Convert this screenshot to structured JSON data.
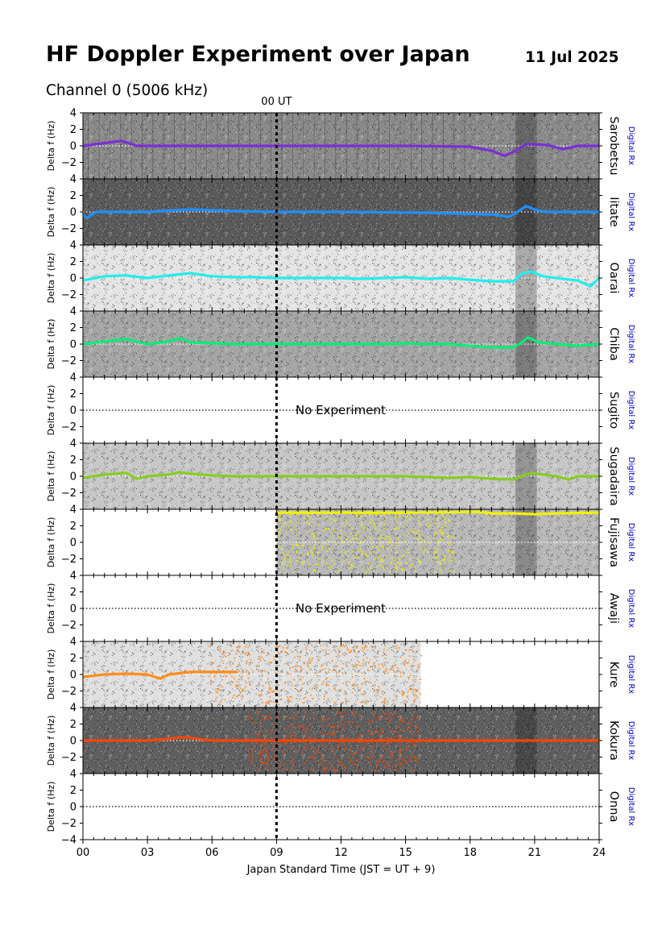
{
  "header": {
    "title": "HF Doppler Experiment over Japan",
    "date": "11 Jul 2025",
    "channel": "Channel 0 (5006 kHz)"
  },
  "chart_data": {
    "type": "line",
    "title": "HF Doppler Experiment over Japan",
    "subtitle": "Channel 0 (5006 kHz)",
    "xlabel": "Japan Standard Time (JST = UT + 9)",
    "ylabel": "Delta f (Hz)",
    "xlim": [
      0,
      24
    ],
    "ylim": [
      -4,
      4
    ],
    "xticks": [
      "00",
      "03",
      "06",
      "09",
      "12",
      "15",
      "18",
      "21",
      "24"
    ],
    "yticks": [
      "4",
      "2",
      "0",
      "−2",
      "−4"
    ],
    "marker": {
      "label": "00 UT",
      "x": 9
    },
    "receiver_label": "Digital Rx",
    "receiver_color": "#0000cc",
    "no_experiment_text": "No Experiment",
    "stations": [
      {
        "name": "Sarobetsu",
        "color": "#7b2fd6",
        "background": "#8a8a8a",
        "data_range": [
          0,
          24
        ],
        "trace_range": [
          0,
          24
        ],
        "trace": [
          [
            0,
            0
          ],
          [
            1.8,
            0.6
          ],
          [
            2.5,
            0
          ],
          [
            6,
            0
          ],
          [
            9,
            0
          ],
          [
            15,
            0
          ],
          [
            18,
            -0.1
          ],
          [
            19,
            -0.6
          ],
          [
            19.6,
            -1.2
          ],
          [
            20.2,
            -0.5
          ],
          [
            20.6,
            0.2
          ],
          [
            21.6,
            0.1
          ],
          [
            22.3,
            -0.4
          ],
          [
            23,
            0
          ],
          [
            24,
            0
          ]
        ]
      },
      {
        "name": "Iitate",
        "color": "#1e90ff",
        "background": "#5a5a5a",
        "data_range": [
          0,
          24
        ],
        "trace_range": [
          0,
          24
        ],
        "trace": [
          [
            0,
            -0.4
          ],
          [
            0.2,
            -0.7
          ],
          [
            0.6,
            0
          ],
          [
            3,
            0
          ],
          [
            5,
            0.3
          ],
          [
            7,
            0.1
          ],
          [
            9,
            0
          ],
          [
            12,
            0
          ],
          [
            16,
            -0.1
          ],
          [
            17.5,
            -0.2
          ],
          [
            19,
            -0.3
          ],
          [
            19.8,
            -0.6
          ],
          [
            20.2,
            0
          ],
          [
            20.6,
            0.7
          ],
          [
            21,
            0.3
          ],
          [
            21.5,
            0
          ],
          [
            24,
            0
          ]
        ]
      },
      {
        "name": "Oarai",
        "color": "#22eeee",
        "background": "#e4e4e4",
        "data_range": [
          0,
          24
        ],
        "trace_range": [
          0,
          24
        ],
        "trace": [
          [
            0,
            -0.3
          ],
          [
            1,
            0.2
          ],
          [
            2,
            0.3
          ],
          [
            3,
            0
          ],
          [
            4,
            0.3
          ],
          [
            5,
            0.6
          ],
          [
            6,
            0.2
          ],
          [
            7,
            0.1
          ],
          [
            8,
            0.1
          ],
          [
            9,
            0
          ],
          [
            12,
            0
          ],
          [
            13,
            -0.1
          ],
          [
            14,
            0
          ],
          [
            15,
            0.1
          ],
          [
            16,
            -0.1
          ],
          [
            17,
            0
          ],
          [
            18,
            -0.2
          ],
          [
            19,
            -0.4
          ],
          [
            20,
            -0.4
          ],
          [
            20.4,
            0.5
          ],
          [
            20.8,
            0.8
          ],
          [
            21.4,
            0.2
          ],
          [
            22,
            0
          ],
          [
            23,
            -0.3
          ],
          [
            23.6,
            -1
          ],
          [
            24,
            0
          ]
        ]
      },
      {
        "name": "Chiba",
        "color": "#00ee77",
        "background": "#a5a5a5",
        "data_range": [
          0,
          24
        ],
        "trace_range": [
          0,
          24
        ],
        "trace": [
          [
            0,
            0
          ],
          [
            1,
            0.3
          ],
          [
            2,
            0.6
          ],
          [
            3,
            0
          ],
          [
            4,
            0.3
          ],
          [
            4.5,
            0.7
          ],
          [
            5,
            0.2
          ],
          [
            6,
            0.1
          ],
          [
            7,
            0
          ],
          [
            9,
            0
          ],
          [
            12,
            0
          ],
          [
            14,
            0
          ],
          [
            15,
            0.1
          ],
          [
            16,
            0
          ],
          [
            17,
            0
          ],
          [
            18,
            -0.2
          ],
          [
            19,
            -0.4
          ],
          [
            20,
            -0.4
          ],
          [
            20.3,
            0
          ],
          [
            20.7,
            0.8
          ],
          [
            21.2,
            0.2
          ],
          [
            22,
            0
          ],
          [
            23,
            -0.2
          ],
          [
            24,
            0
          ]
        ]
      },
      {
        "name": "Sugito",
        "color": "#000000",
        "background": null,
        "no_experiment": true
      },
      {
        "name": "Sugadaira",
        "color": "#88cc22",
        "background": "#c7c7c7",
        "data_range": [
          0,
          24
        ],
        "trace_range": [
          0,
          24
        ],
        "trace": [
          [
            0,
            -0.2
          ],
          [
            1,
            0.2
          ],
          [
            2,
            0.4
          ],
          [
            2.5,
            -0.3
          ],
          [
            3,
            0
          ],
          [
            4,
            0.2
          ],
          [
            4.5,
            0.5
          ],
          [
            5,
            0.3
          ],
          [
            6,
            0.1
          ],
          [
            7,
            0
          ],
          [
            9,
            0
          ],
          [
            12,
            0
          ],
          [
            15,
            0
          ],
          [
            16,
            -0.1
          ],
          [
            17,
            -0.2
          ],
          [
            18,
            -0.1
          ],
          [
            19,
            -0.3
          ],
          [
            20,
            -0.4
          ],
          [
            20.4,
            0
          ],
          [
            20.8,
            0.4
          ],
          [
            21.4,
            0.2
          ],
          [
            22,
            0
          ],
          [
            22.6,
            -0.4
          ],
          [
            23,
            0
          ],
          [
            24,
            0
          ]
        ]
      },
      {
        "name": "Fujisawa",
        "color": "#f2f200",
        "background": "#b8b8b8",
        "data_range": [
          9,
          24
        ],
        "trace_range": [
          9,
          24
        ],
        "trace": [
          [
            9,
            3.6
          ],
          [
            12,
            3.6
          ],
          [
            15,
            3.6
          ],
          [
            18.4,
            3.7
          ],
          [
            19,
            3.5
          ],
          [
            20,
            3.5
          ],
          [
            21,
            3.4
          ],
          [
            22,
            3.5
          ],
          [
            24,
            3.6
          ]
        ]
      },
      {
        "name": "Awaji",
        "color": "#000000",
        "background": null,
        "no_experiment": true
      },
      {
        "name": "Kure",
        "color": "#ff8c1a",
        "background": "#e0e0e0",
        "data_range": [
          0,
          15.7
        ],
        "trace_range": [
          0,
          7.2
        ],
        "trace": [
          [
            0,
            -0.3
          ],
          [
            1,
            0
          ],
          [
            2,
            0.1
          ],
          [
            3,
            0
          ],
          [
            3.6,
            -0.5
          ],
          [
            4,
            0
          ],
          [
            5,
            0.3
          ],
          [
            6,
            0.3
          ],
          [
            7.2,
            0.3
          ]
        ]
      },
      {
        "name": "Kokura",
        "color": "#ff4500",
        "background": "#5f5f5f",
        "data_range": [
          0,
          24
        ],
        "trace_range": [
          0,
          24
        ],
        "trace": [
          [
            0,
            0
          ],
          [
            3,
            0
          ],
          [
            4,
            0.2
          ],
          [
            4.5,
            0.4
          ],
          [
            5,
            0.3
          ],
          [
            6,
            0
          ],
          [
            9,
            0
          ],
          [
            12,
            0
          ],
          [
            15,
            0
          ],
          [
            18,
            0
          ],
          [
            21,
            0
          ],
          [
            24,
            0
          ]
        ]
      },
      {
        "name": "Onna",
        "color": "#000000",
        "background": null,
        "data_range": null
      }
    ]
  }
}
